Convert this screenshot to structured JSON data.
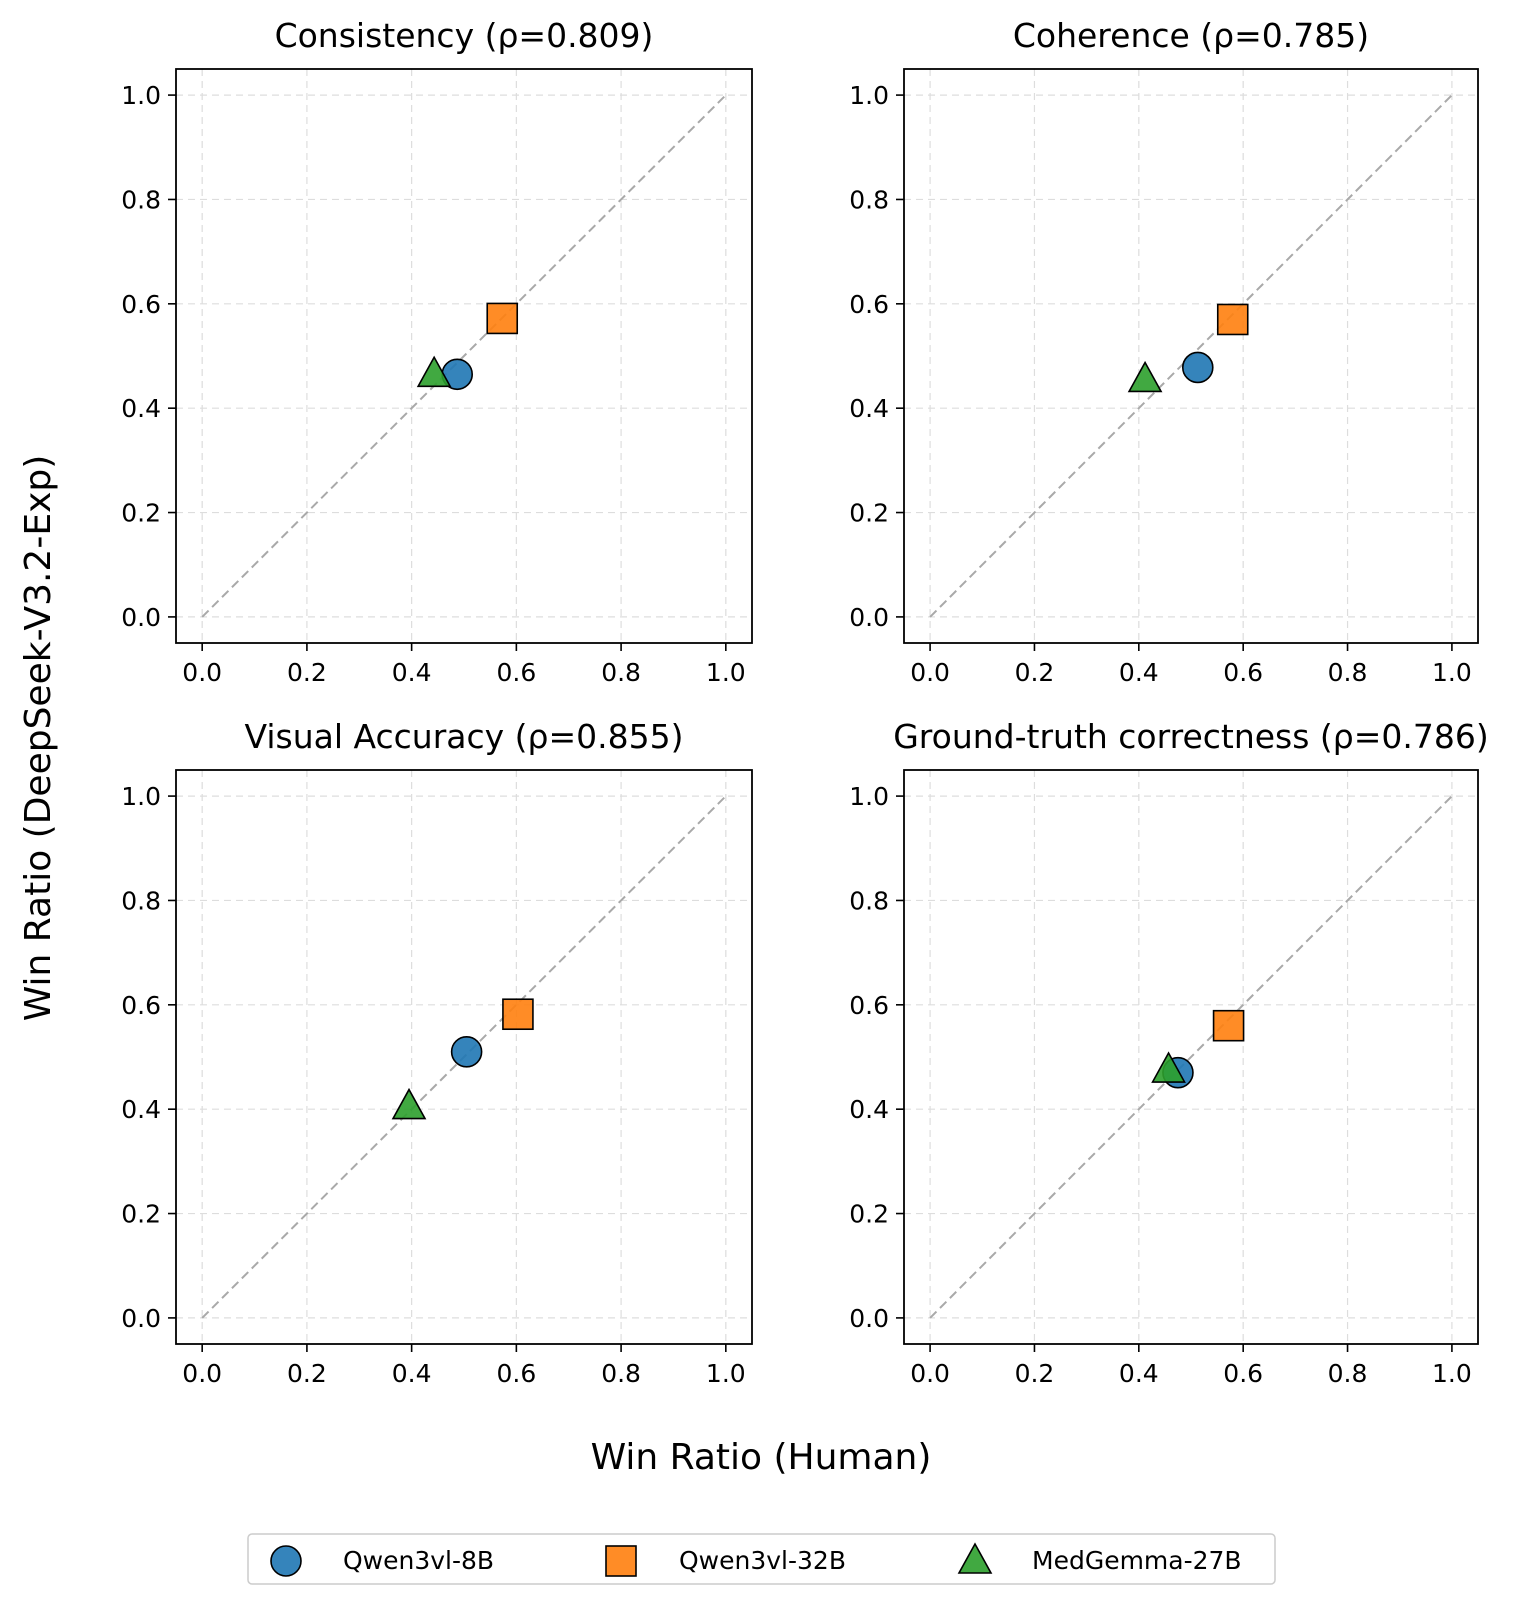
{
  "figure": {
    "xlabel": "Win Ratio (Human)",
    "ylabel": "Win Ratio (DeepSeek-V3.2-Exp)"
  },
  "legend": {
    "placement": "bottom-center",
    "entries": [
      {
        "name": "Qwen3vl-8B",
        "marker": "circle",
        "color": "#1f77b4"
      },
      {
        "name": "Qwen3vl-32B",
        "marker": "square",
        "color": "#ff7f0e"
      },
      {
        "name": "MedGemma-27B",
        "marker": "triangle",
        "color": "#2ca02c"
      }
    ]
  },
  "chart_data": [
    {
      "type": "scatter",
      "title": "Consistency (ρ=0.809)",
      "xlim": [
        -0.05,
        1.05
      ],
      "ylim": [
        -0.05,
        1.05
      ],
      "xticks": [
        "0.0",
        "0.2",
        "0.4",
        "0.6",
        "0.8",
        "1.0"
      ],
      "yticks": [
        "0.0",
        "0.2",
        "0.4",
        "0.6",
        "0.8",
        "1.0"
      ],
      "grid": true,
      "diagonal": true,
      "series": [
        {
          "name": "Qwen3vl-8B",
          "x": 0.487,
          "y": 0.465
        },
        {
          "name": "Qwen3vl-32B",
          "x": 0.573,
          "y": 0.572
        },
        {
          "name": "MedGemma-27B",
          "x": 0.443,
          "y": 0.465
        }
      ]
    },
    {
      "type": "scatter",
      "title": "Coherence (ρ=0.785)",
      "xlim": [
        -0.05,
        1.05
      ],
      "ylim": [
        -0.05,
        1.05
      ],
      "xticks": [
        "0.0",
        "0.2",
        "0.4",
        "0.6",
        "0.8",
        "1.0"
      ],
      "yticks": [
        "0.0",
        "0.2",
        "0.4",
        "0.6",
        "0.8",
        "1.0"
      ],
      "grid": true,
      "diagonal": true,
      "series": [
        {
          "name": "Qwen3vl-8B",
          "x": 0.513,
          "y": 0.478
        },
        {
          "name": "Qwen3vl-32B",
          "x": 0.58,
          "y": 0.57
        },
        {
          "name": "MedGemma-27B",
          "x": 0.412,
          "y": 0.455
        }
      ]
    },
    {
      "type": "scatter",
      "title": "Visual Accuracy (ρ=0.855)",
      "xlim": [
        -0.05,
        1.05
      ],
      "ylim": [
        -0.05,
        1.05
      ],
      "xticks": [
        "0.0",
        "0.2",
        "0.4",
        "0.6",
        "0.8",
        "1.0"
      ],
      "yticks": [
        "0.0",
        "0.2",
        "0.4",
        "0.6",
        "0.8",
        "1.0"
      ],
      "grid": true,
      "diagonal": true,
      "series": [
        {
          "name": "Qwen3vl-8B",
          "x": 0.505,
          "y": 0.51
        },
        {
          "name": "Qwen3vl-32B",
          "x": 0.603,
          "y": 0.582
        },
        {
          "name": "MedGemma-27B",
          "x": 0.395,
          "y": 0.405
        }
      ]
    },
    {
      "type": "scatter",
      "title": "Ground-truth correctness (ρ=0.786)",
      "xlim": [
        -0.05,
        1.05
      ],
      "ylim": [
        -0.05,
        1.05
      ],
      "xticks": [
        "0.0",
        "0.2",
        "0.4",
        "0.6",
        "0.8",
        "1.0"
      ],
      "yticks": [
        "0.0",
        "0.2",
        "0.4",
        "0.6",
        "0.8",
        "1.0"
      ],
      "grid": true,
      "diagonal": true,
      "series": [
        {
          "name": "Qwen3vl-8B",
          "x": 0.475,
          "y": 0.47
        },
        {
          "name": "Qwen3vl-32B",
          "x": 0.572,
          "y": 0.56
        },
        {
          "name": "MedGemma-27B",
          "x": 0.457,
          "y": 0.475
        }
      ]
    }
  ]
}
